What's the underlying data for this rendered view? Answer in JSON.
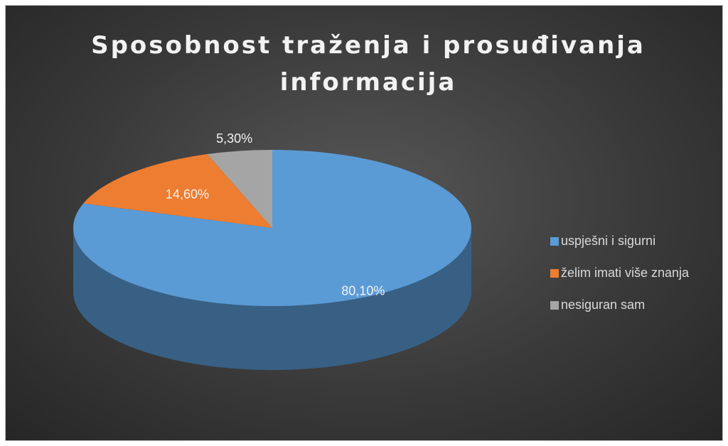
{
  "chart_data": {
    "type": "pie3d",
    "title": "Sposobnost traženja i prosuđivanja informacija",
    "categories": [
      "uspješni i sigurni",
      "želim imati više znanja",
      "nesiguran sam"
    ],
    "values": [
      80.1,
      14.6,
      5.3
    ],
    "value_labels": [
      "80,10%",
      "14,60%",
      "5,30%"
    ],
    "colors": [
      "#5b9bd5",
      "#ed7d31",
      "#a5a5a5"
    ],
    "legend": "right"
  }
}
